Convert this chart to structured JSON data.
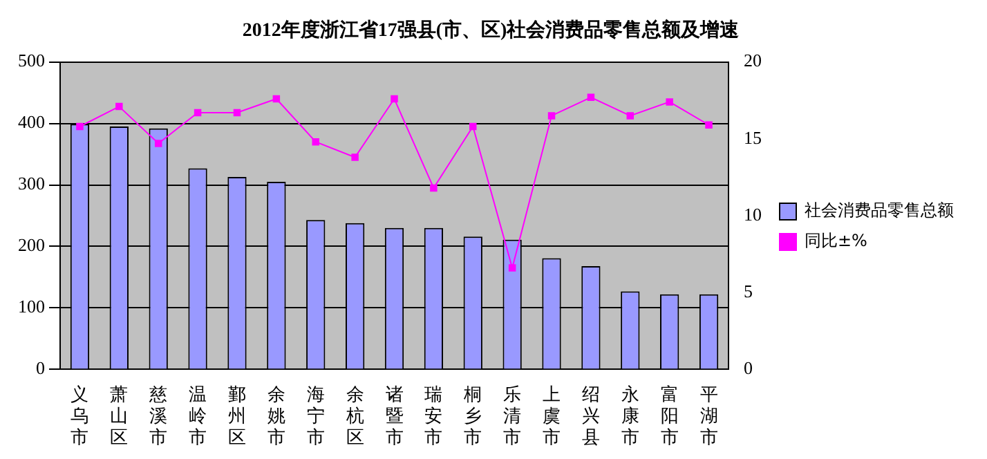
{
  "chart_data": {
    "type": "bar",
    "title": "2012年度浙江省17强县(市、区)社会消费品零售总额及增速",
    "categories": [
      "义乌市",
      "萧山区",
      "慈溪市",
      "温岭市",
      "鄞州区",
      "余姚市",
      "海宁市",
      "余杭区",
      "诸暨市",
      "瑞安市",
      "桐乡市",
      "乐清市",
      "上虞市",
      "绍兴县",
      "永康市",
      "富阳市",
      "平湖市"
    ],
    "series": [
      {
        "name": "社会消费品零售总额",
        "color": "#9999ff",
        "values": [
          399,
          395,
          392,
          327,
          313,
          305,
          243,
          238,
          230,
          230,
          216,
          211,
          181,
          168,
          127,
          122,
          122
        ]
      },
      {
        "name": "同比±%",
        "type": "line",
        "axis": "y2",
        "color": "#ff00ff",
        "marker": "square",
        "values": [
          15.8,
          17.1,
          14.7,
          16.7,
          16.7,
          17.6,
          14.8,
          13.8,
          17.6,
          11.8,
          15.8,
          6.6,
          16.5,
          17.7,
          16.5,
          17.4,
          15.9
        ]
      }
    ],
    "ylim": [
      0,
      500
    ],
    "yticks": [
      0,
      100,
      200,
      300,
      400,
      500
    ],
    "y2lim": [
      0,
      20
    ],
    "y2ticks": [
      0,
      5,
      10,
      15,
      20
    ],
    "grid": "y",
    "legend": "right"
  }
}
